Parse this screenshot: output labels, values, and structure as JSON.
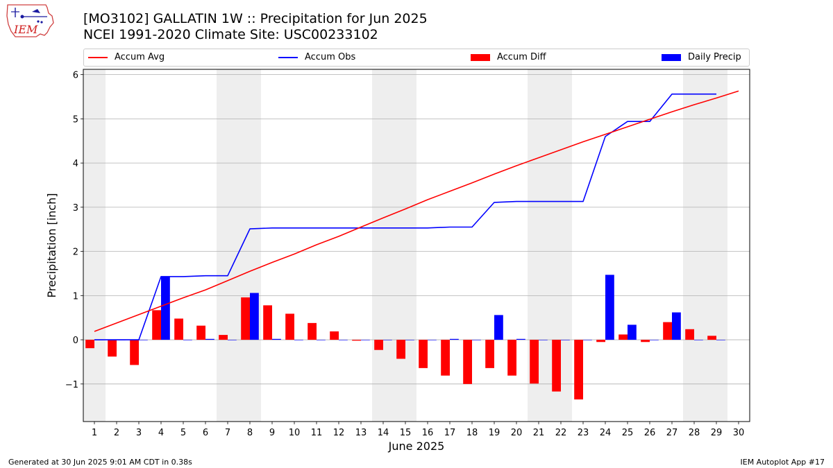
{
  "header": {
    "title_line1": "[MO3102] GALLATIN 1W :: Precipitation for Jun 2025",
    "title_line2": "NCEI 1991-2020 Climate Site: USC00233102",
    "logo_text": "IEM"
  },
  "footer": {
    "left": "Generated at 30 Jun 2025 9:01 AM CDT in 0.38s",
    "right": "IEM Autoplot App #17"
  },
  "colors": {
    "avg": "#ff0000",
    "obs": "#0000ff",
    "diff": "#ff0000",
    "daily": "#0000ff",
    "weekend_band": "#eeeeee",
    "grid": "#b0b0b0"
  },
  "legend": {
    "avg": "Accum Avg",
    "obs": "Accum Obs",
    "diff": "Accum Diff",
    "daily": "Daily Precip"
  },
  "chart_data": {
    "type": "bar",
    "xlabel": "June 2025",
    "ylabel": "Precipitation [inch]",
    "xlim": [
      0.5,
      30.5
    ],
    "ylim": [
      -1.85,
      6.12
    ],
    "yticks": [
      -1,
      0,
      1,
      2,
      3,
      4,
      5,
      6
    ],
    "ytick_labels": [
      "−1",
      "0",
      "1",
      "2",
      "3",
      "4",
      "5",
      "6"
    ],
    "grid": "horizontal",
    "legend_position": "top",
    "categories": [
      "1",
      "2",
      "3",
      "4",
      "5",
      "6",
      "7",
      "8",
      "9",
      "10",
      "11",
      "12",
      "13",
      "14",
      "15",
      "16",
      "17",
      "18",
      "19",
      "20",
      "21",
      "22",
      "23",
      "24",
      "25",
      "26",
      "27",
      "28",
      "29",
      "30"
    ],
    "weekend_bands": [
      [
        0.5,
        1.5
      ],
      [
        6.5,
        8.5
      ],
      [
        13.5,
        15.5
      ],
      [
        20.5,
        22.5
      ],
      [
        27.5,
        29.5
      ]
    ],
    "series": [
      {
        "name": "Accum Avg",
        "kind": "line",
        "values": [
          0.19,
          0.38,
          0.57,
          0.76,
          0.95,
          1.13,
          1.34,
          1.55,
          1.75,
          1.94,
          2.15,
          2.34,
          2.55,
          2.76,
          2.96,
          3.17,
          3.36,
          3.55,
          3.75,
          3.94,
          4.12,
          4.3,
          4.48,
          4.65,
          4.82,
          4.99,
          5.16,
          5.32,
          5.47,
          5.63
        ]
      },
      {
        "name": "Accum Obs",
        "kind": "line",
        "values": [
          0,
          0,
          0,
          1.43,
          1.43,
          1.45,
          1.45,
          2.51,
          2.53,
          2.53,
          2.53,
          2.53,
          2.53,
          2.53,
          2.53,
          2.53,
          2.55,
          2.55,
          3.11,
          3.13,
          3.13,
          3.13,
          3.13,
          4.6,
          4.94,
          4.94,
          5.56,
          5.56,
          5.56,
          null
        ]
      },
      {
        "name": "Accum Diff",
        "kind": "bar",
        "values": [
          -0.19,
          -0.38,
          -0.57,
          0.67,
          0.48,
          0.32,
          0.11,
          0.96,
          0.78,
          0.59,
          0.38,
          0.19,
          -0.02,
          -0.23,
          -0.43,
          -0.64,
          -0.81,
          -1.0,
          -0.64,
          -0.81,
          -0.99,
          -1.17,
          -1.35,
          -0.05,
          0.12,
          -0.05,
          0.4,
          0.24,
          0.09,
          null
        ]
      },
      {
        "name": "Daily Precip",
        "kind": "bar",
        "values": [
          0,
          0,
          0,
          1.43,
          0,
          0.02,
          0,
          1.06,
          0.02,
          0,
          0,
          0,
          0,
          0,
          0,
          0,
          0.02,
          0,
          0.56,
          0.02,
          0,
          0,
          0,
          1.47,
          0.34,
          0,
          0.62,
          0,
          0,
          null
        ]
      }
    ]
  }
}
